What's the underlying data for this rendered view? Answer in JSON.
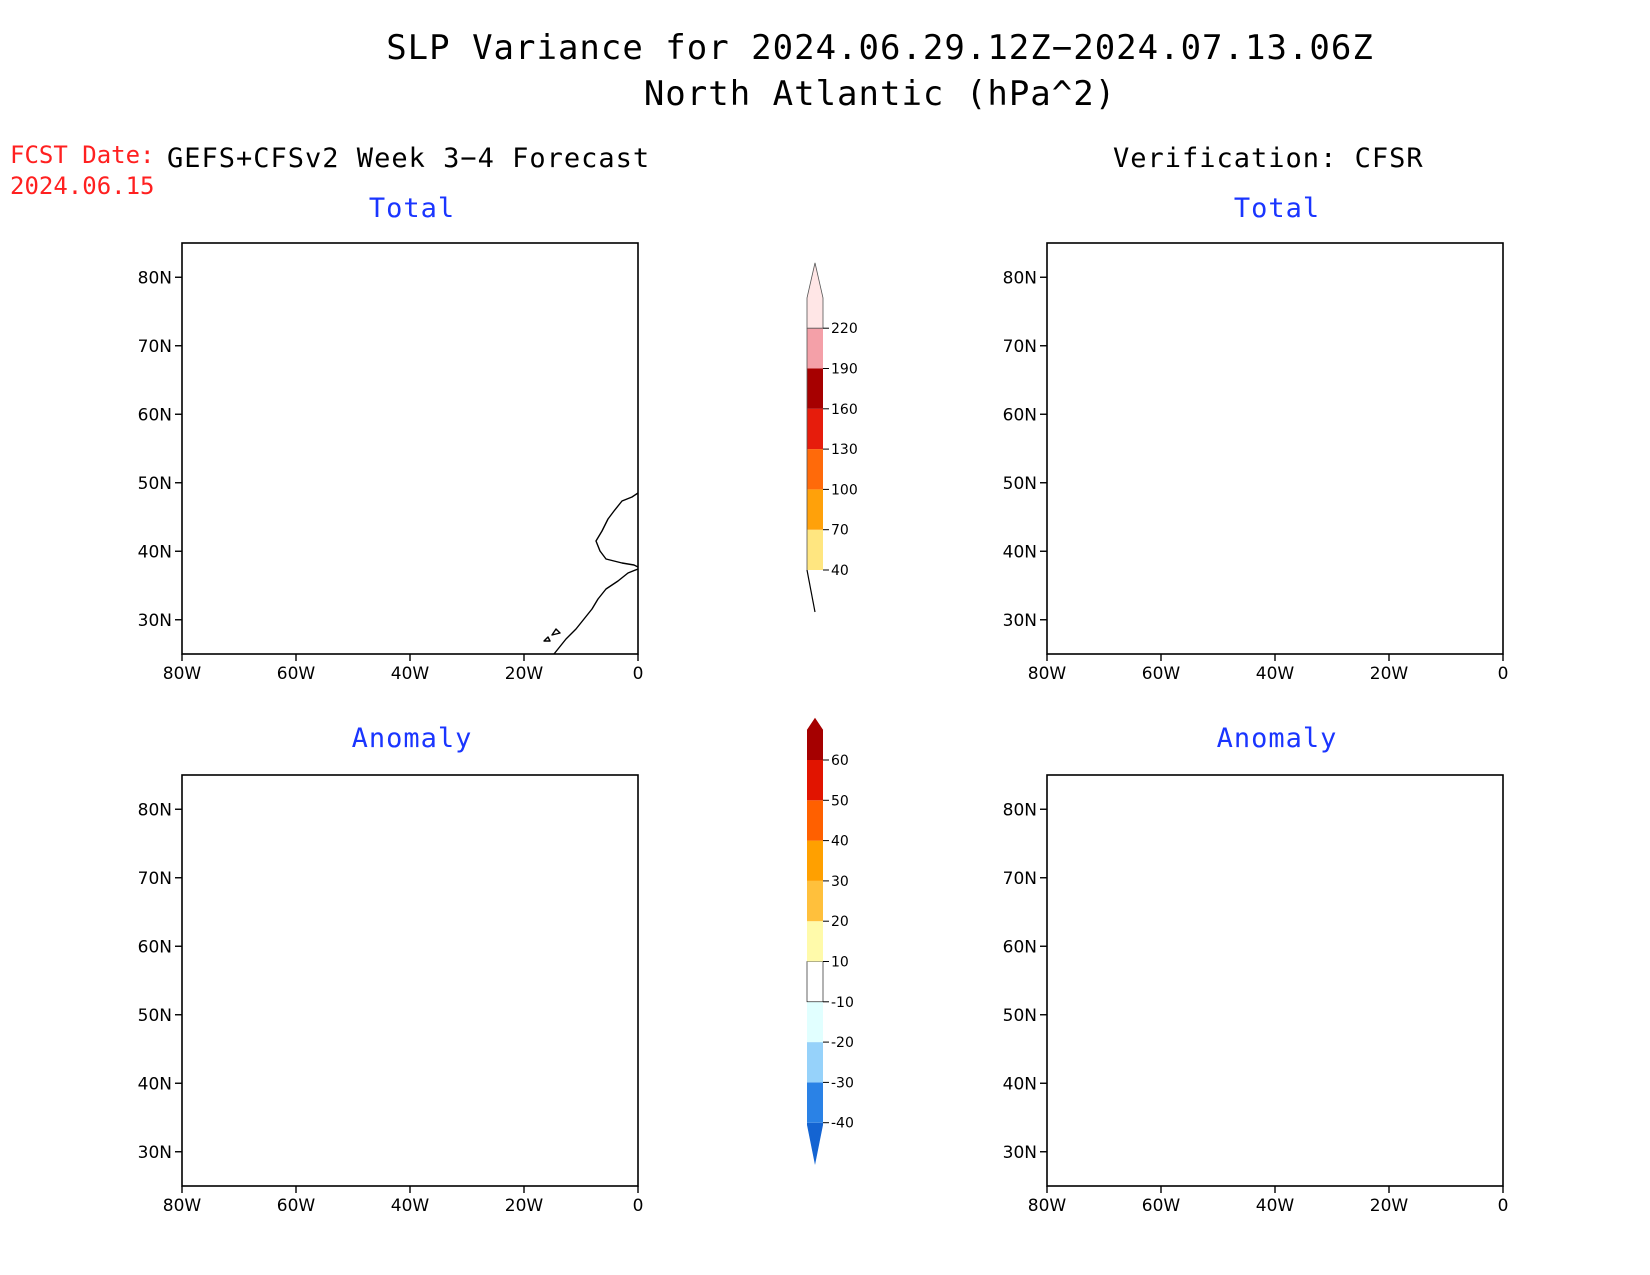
{
  "header": {
    "title": "SLP Variance for 2024.06.29.12Z−2024.07.13.06Z",
    "subtitle": "North Atlantic (hPa^2)",
    "fcst_label": "FCST Date:",
    "fcst_date": "2024.06.15"
  },
  "columns": {
    "left": "GEFS+CFSv2 Week 3−4 Forecast",
    "right": "Verification: CFSR"
  },
  "panels": [
    {
      "id": "forecast-total",
      "title": "Total"
    },
    {
      "id": "verification-total",
      "title": "Total"
    },
    {
      "id": "forecast-anomaly",
      "title": "Anomaly"
    },
    {
      "id": "verification-anomaly",
      "title": "Anomaly"
    }
  ],
  "axes": {
    "lat_labels": [
      "80N",
      "70N",
      "60N",
      "50N",
      "40N",
      "30N"
    ],
    "lat_values": [
      80,
      70,
      60,
      50,
      40,
      30
    ],
    "lon_labels": [
      "80W",
      "60W",
      "40W",
      "20W",
      "0"
    ],
    "lon_values": [
      -80,
      -60,
      -40,
      -20,
      0
    ],
    "lon_range": [
      -80,
      0
    ],
    "lat_range": [
      25,
      85
    ]
  },
  "colorbars": {
    "total": {
      "labels": [
        "40",
        "70",
        "100",
        "130",
        "160",
        "190",
        "220"
      ],
      "colors": [
        "#ffe680",
        "#ffa10a",
        "#ff6a0a",
        "#e61c0c",
        "#a60000",
        "#f4a0a8",
        "#ffe6e6"
      ]
    },
    "anomaly": {
      "labels": [
        "-40",
        "-30",
        "-20",
        "-10",
        "10",
        "20",
        "30",
        "40",
        "50",
        "60"
      ],
      "colors": [
        "#1464d2",
        "#2a82e6",
        "#96d2fa",
        "#e1ffff",
        "#ffffff",
        "#fffaaa",
        "#ffc03c",
        "#ffa000",
        "#ff6000",
        "#e11400",
        "#a50000"
      ]
    }
  },
  "legend_colors": {
    "yellow": "#ffe680",
    "orange": "#ffa10a",
    "anom_pale_yellow": "#fffaaa",
    "anom_light_orange": "#ffc03c",
    "anom_orange": "#ffa000",
    "anom_dark_orange": "#ff6000",
    "anom_light_blue": "#e1ffff"
  }
}
